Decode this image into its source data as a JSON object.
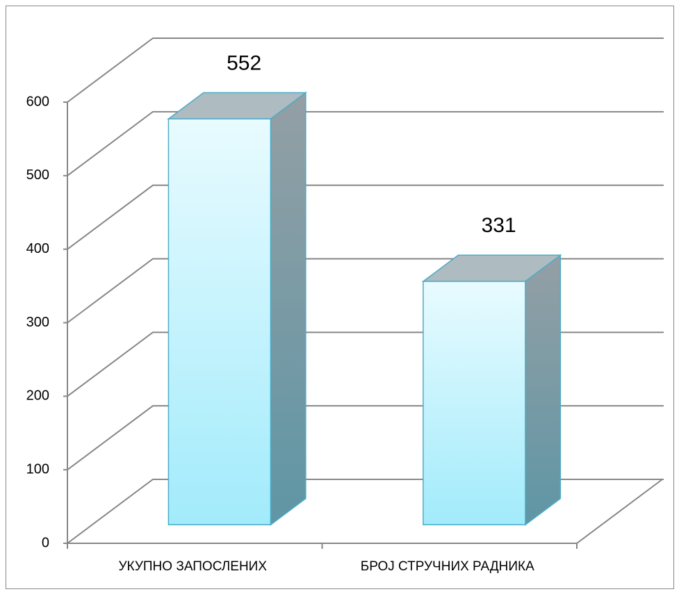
{
  "chart_data": {
    "type": "bar",
    "categories": [
      "УКУПНО ЗАПОСЛЕНИХ",
      "БРОЈ СТРУЧНИХ РАДНИКА"
    ],
    "values": [
      552,
      331
    ],
    "ylim": [
      0,
      600
    ],
    "yticks": [
      0,
      100,
      200,
      300,
      400,
      500,
      600
    ],
    "grid": true,
    "color": "#b8f0fc"
  }
}
